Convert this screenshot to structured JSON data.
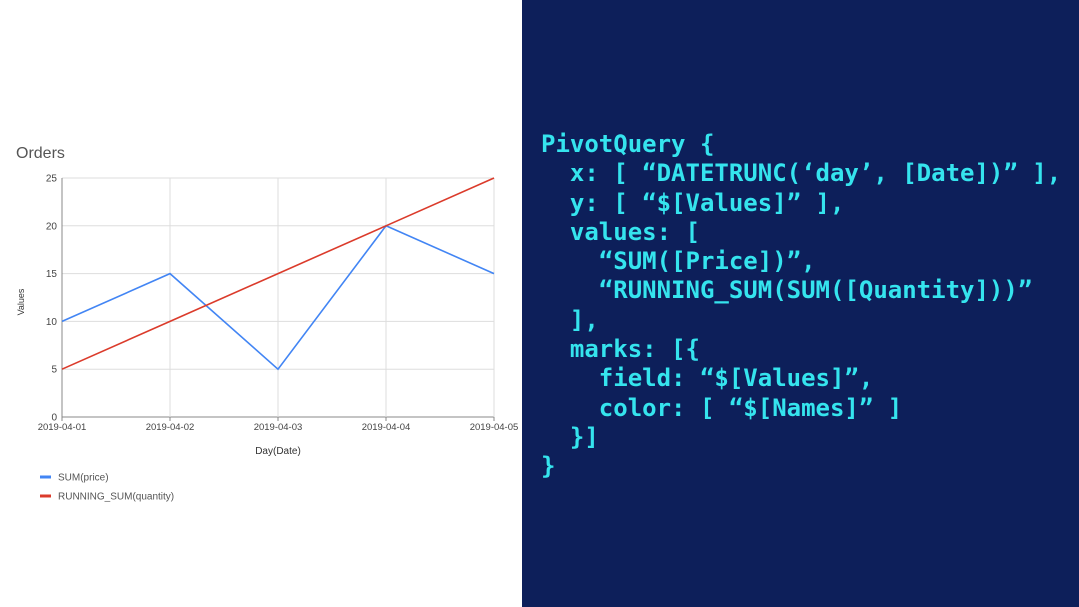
{
  "chart_data": {
    "type": "line",
    "title": "Orders",
    "xlabel": "Day(Date)",
    "ylabel": "Values",
    "categories": [
      "2019-04-01",
      "2019-04-02",
      "2019-04-03",
      "2019-04-04",
      "2019-04-05"
    ],
    "ylim": [
      0,
      25
    ],
    "yticks": [
      0,
      5,
      10,
      15,
      20,
      25
    ],
    "grid": true,
    "legend_position": "bottom-left",
    "series": [
      {
        "name": "SUM(price)",
        "color": "#4285f4",
        "values": [
          10,
          15,
          5,
          20,
          15
        ]
      },
      {
        "name": "RUNNING_SUM(quantity)",
        "color": "#db3b2b",
        "values": [
          5,
          10,
          15,
          20,
          25
        ]
      }
    ]
  },
  "code": {
    "accent_color": "#35e4ee",
    "background_color": "#0d1f5a",
    "lines": [
      "PivotQuery {",
      "  x: [ “DATETRUNC(‘day’, [Date])” ],",
      "  y: [ “$[Values]” ],",
      "  values: [",
      "    “SUM([Price])”,",
      "    “RUNNING_SUM(SUM([Quantity]))”",
      "  ],",
      "  marks: [{",
      "    field: “$[Values]”,",
      "    color: [ “$[Names]” ]",
      "  }]",
      "}"
    ]
  }
}
